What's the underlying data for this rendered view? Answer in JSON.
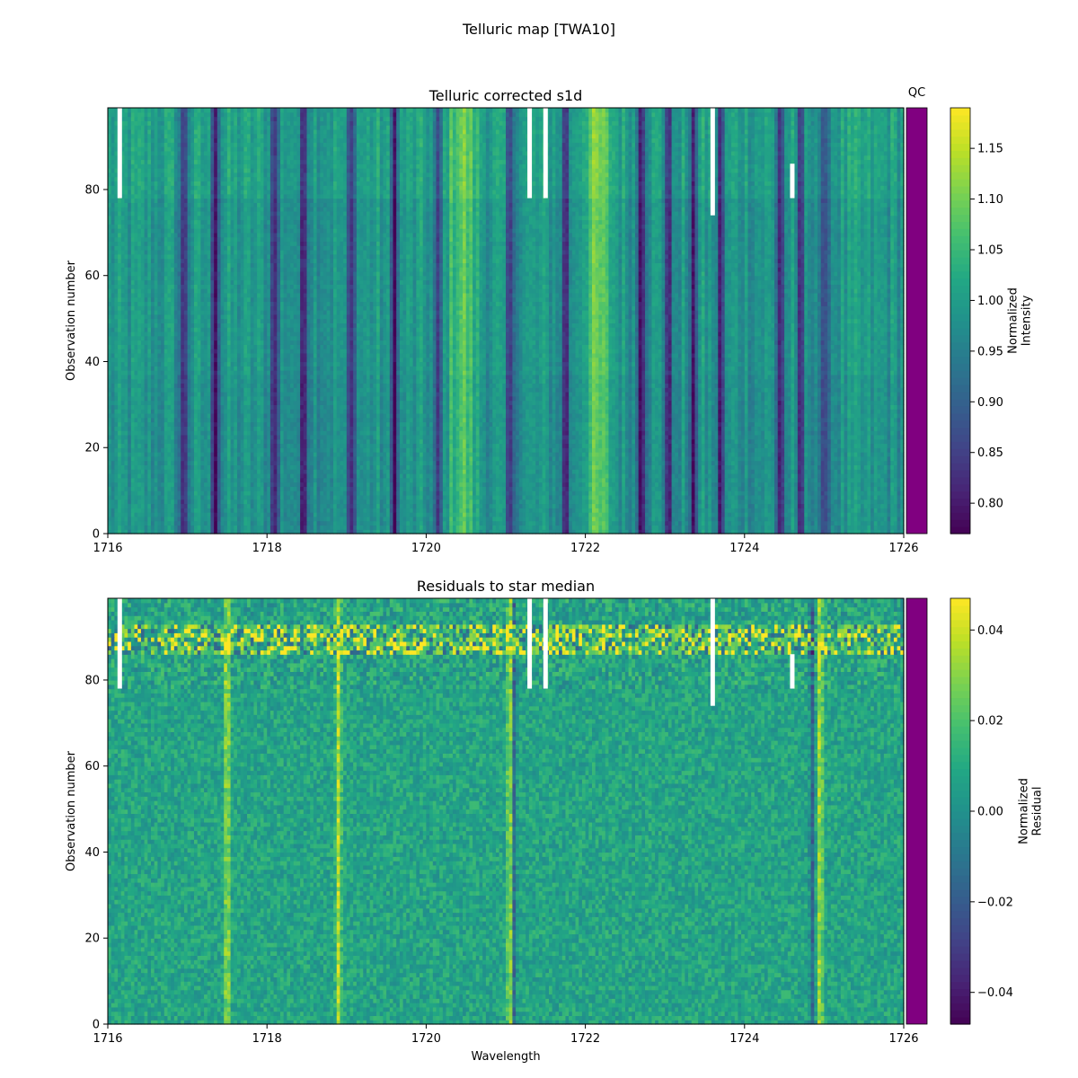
{
  "figure": {
    "title": "Telluric map [TWA10]"
  },
  "qc_label": "QC",
  "qc_color": "#800080",
  "chart_data": [
    {
      "type": "heatmap",
      "title": "Telluric corrected s1d",
      "xlabel": "",
      "ylabel": "Observation number",
      "xlim": [
        1716,
        1726
      ],
      "ylim": [
        0,
        99
      ],
      "x_ticks": [
        1716,
        1718,
        1720,
        1722,
        1724,
        1726
      ],
      "y_ticks": [
        0,
        20,
        40,
        60,
        80
      ],
      "colormap": "viridis",
      "colorbar": {
        "label": "Normalized\nIntensity",
        "range": [
          0.77,
          1.19
        ],
        "ticks": [
          "0.80",
          "0.85",
          "0.90",
          "0.95",
          "1.00",
          "1.05",
          "1.10",
          "1.15"
        ]
      },
      "absorption_lines": [
        1716.95,
        1717.35,
        1718.1,
        1718.45,
        1719.05,
        1719.6,
        1720.15,
        1721.05,
        1721.75,
        1722.7,
        1723.05,
        1723.35,
        1723.7,
        1724.45,
        1724.7,
        1725.0
      ],
      "emission_regions": [
        1720.45,
        1722.15
      ],
      "masked_columns": [
        {
          "x": 1716.15,
          "from_obs": 78,
          "to_obs": 99
        },
        {
          "x": 1721.3,
          "from_obs": 78,
          "to_obs": 99
        },
        {
          "x": 1721.5,
          "from_obs": 78,
          "to_obs": 99
        },
        {
          "x": 1723.6,
          "from_obs": 74,
          "to_obs": 99
        },
        {
          "x": 1724.6,
          "from_obs": 78,
          "to_obs": 86
        }
      ]
    },
    {
      "type": "heatmap",
      "title": "Residuals to star median",
      "xlabel": "Wavelength",
      "ylabel": "Observation number",
      "xlim": [
        1716,
        1726
      ],
      "ylim": [
        0,
        99
      ],
      "x_ticks": [
        1716,
        1718,
        1720,
        1722,
        1724,
        1726
      ],
      "y_ticks": [
        0,
        20,
        40,
        60,
        80
      ],
      "colormap": "viridis",
      "colorbar": {
        "label": "Normalized\nResidual",
        "range": [
          -0.047,
          0.047
        ],
        "ticks": [
          "−0.04",
          "−0.02",
          "0.00",
          "0.02",
          "0.04"
        ]
      },
      "bright_lines": [
        1721.05,
        1724.95,
        1718.9,
        1717.5
      ],
      "dark_lines": [
        1721.1,
        1724.85
      ],
      "masked_columns": [
        {
          "x": 1716.15,
          "from_obs": 78,
          "to_obs": 99
        },
        {
          "x": 1721.3,
          "from_obs": 78,
          "to_obs": 99
        },
        {
          "x": 1721.5,
          "from_obs": 78,
          "to_obs": 99
        },
        {
          "x": 1723.6,
          "from_obs": 74,
          "to_obs": 99
        },
        {
          "x": 1724.6,
          "from_obs": 78,
          "to_obs": 86
        }
      ]
    }
  ]
}
